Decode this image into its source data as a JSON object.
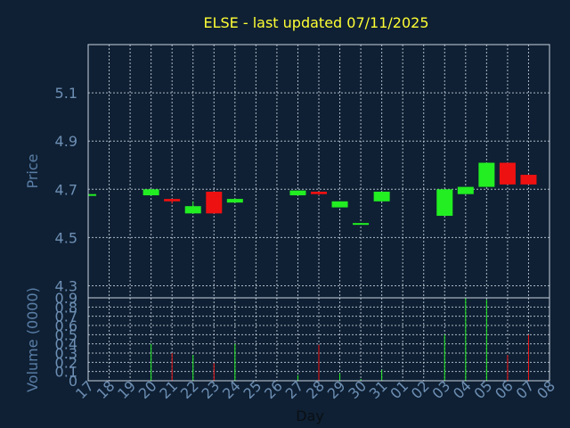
{
  "chart_data": {
    "type": "candlestick",
    "title": "ELSE - last updated 07/11/2025",
    "xlabel": "Day",
    "price_panel": {
      "ylabel": "Price",
      "ylim": [
        4.25,
        5.3
      ],
      "yticks": [
        4.3,
        4.5,
        4.7,
        4.9,
        5.1
      ]
    },
    "volume_panel": {
      "ylabel": "Volume (0000)",
      "ylim": [
        0,
        0.9
      ],
      "yticks": [
        0,
        0.1,
        0.2,
        0.3,
        0.4,
        0.5,
        0.6,
        0.7,
        0.8,
        0.9
      ],
      "ytick_labels": [
        "0",
        "0.1",
        "0.2",
        "0.3",
        "0.4",
        "0.5",
        "0.6",
        "0.7",
        "0.8",
        "0.9"
      ]
    },
    "x_tick_labels": [
      "17",
      "18",
      "19",
      "20",
      "21",
      "22",
      "23",
      "24",
      "25",
      "26",
      "27",
      "28",
      "29",
      "30",
      "31",
      "01",
      "02",
      "03",
      "04",
      "05",
      "06",
      "07",
      "08"
    ],
    "colors": {
      "up": "#22ee22",
      "down": "#ee1111"
    },
    "candles": [
      {
        "day": "17",
        "open": 4.675,
        "close": 4.68,
        "high": 4.68,
        "low": 4.675,
        "volume": 0.01
      },
      {
        "day": "20",
        "open": 4.675,
        "close": 4.7,
        "high": 4.7,
        "low": 4.675,
        "volume": 0.4
      },
      {
        "day": "21",
        "open": 4.66,
        "close": 4.65,
        "high": 4.66,
        "low": 4.64,
        "volume": 0.3
      },
      {
        "day": "22",
        "open": 4.6,
        "close": 4.63,
        "high": 4.65,
        "low": 4.6,
        "volume": 0.28
      },
      {
        "day": "23",
        "open": 4.69,
        "close": 4.6,
        "high": 4.69,
        "low": 4.6,
        "volume": 0.19
      },
      {
        "day": "24",
        "open": 4.645,
        "close": 4.66,
        "high": 4.66,
        "low": 4.645,
        "volume": 0.4
      },
      {
        "day": "27",
        "open": 4.675,
        "close": 4.695,
        "high": 4.695,
        "low": 4.675,
        "volume": 0.06
      },
      {
        "day": "28",
        "open": 4.69,
        "close": 4.68,
        "high": 4.69,
        "low": 4.675,
        "volume": 0.39
      },
      {
        "day": "29",
        "open": 4.625,
        "close": 4.65,
        "high": 4.65,
        "low": 4.625,
        "volume": 0.08
      },
      {
        "day": "30",
        "open": 4.555,
        "close": 4.56,
        "high": 4.56,
        "low": 4.555,
        "volume": 0.02
      },
      {
        "day": "31",
        "open": 4.65,
        "close": 4.69,
        "high": 4.69,
        "low": 4.65,
        "volume": 0.12
      },
      {
        "day": "03",
        "open": 4.59,
        "close": 4.7,
        "high": 4.7,
        "low": 4.59,
        "volume": 0.5
      },
      {
        "day": "04",
        "open": 4.68,
        "close": 4.71,
        "high": 4.71,
        "low": 4.68,
        "volume": 0.9
      },
      {
        "day": "05",
        "open": 4.71,
        "close": 4.81,
        "high": 4.81,
        "low": 4.71,
        "volume": 0.88
      },
      {
        "day": "06",
        "open": 4.81,
        "close": 4.72,
        "high": 4.81,
        "low": 4.72,
        "volume": 0.28
      },
      {
        "day": "07",
        "open": 4.76,
        "close": 4.72,
        "high": 4.76,
        "low": 4.72,
        "volume": 0.5
      }
    ]
  }
}
